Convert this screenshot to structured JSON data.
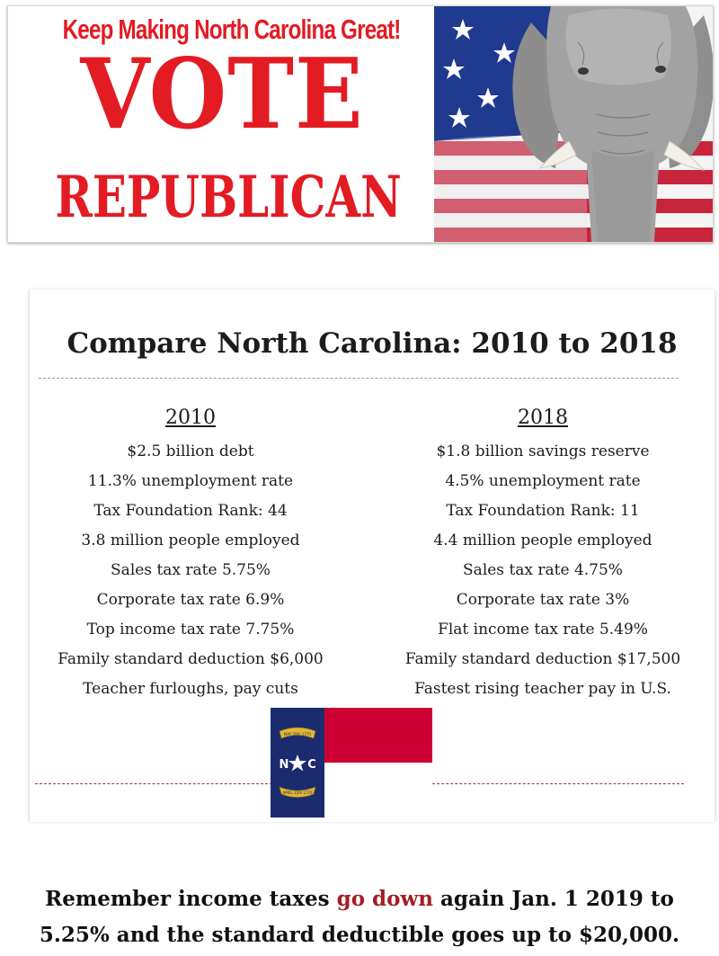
{
  "banner": {
    "slogan": "Keep Making North Carolina Great!",
    "line1": "VOTE",
    "line2": "REPUBLICAN"
  },
  "comparison": {
    "title": "Compare North Carolina: 2010 to 2018",
    "col2010": {
      "heading": "2010",
      "rows": [
        "$2.5 billion debt",
        "11.3% unemployment rate",
        "Tax Foundation Rank: 44",
        "3.8 million people employed",
        "Sales tax rate 5.75%",
        "Corporate tax rate 6.9%",
        "Top income tax rate 7.75%",
        "Family standard deduction $6,000",
        "Teacher furloughs, pay cuts"
      ]
    },
    "col2018": {
      "heading": "2018",
      "rows": [
        "$1.8 billion savings reserve",
        "4.5% unemployment rate",
        "Tax Foundation Rank: 11",
        "4.4 million people employed",
        "Sales tax rate 4.75%",
        "Corporate tax rate 3%",
        "Flat income tax rate 5.49%",
        "Family standard deduction $17,500",
        "Fastest rising teacher pay in U.S."
      ]
    },
    "flag": {
      "initials_left": "N",
      "initials_right": "C",
      "ribbon_top": "MAY 20th 1775",
      "ribbon_bottom": "APRIL 12th 1776"
    }
  },
  "footer": {
    "part1": "Remember income taxes ",
    "highlight": "go down",
    "part2": " again Jan. 1 2019 to",
    "line2": "5.25% and the standard deductible goes up to $20,000."
  },
  "colors": {
    "banner_red": "#e31b23",
    "flag_blue": "#1b2c6e",
    "flag_red": "#cc0033",
    "highlight": "#a31f24"
  }
}
